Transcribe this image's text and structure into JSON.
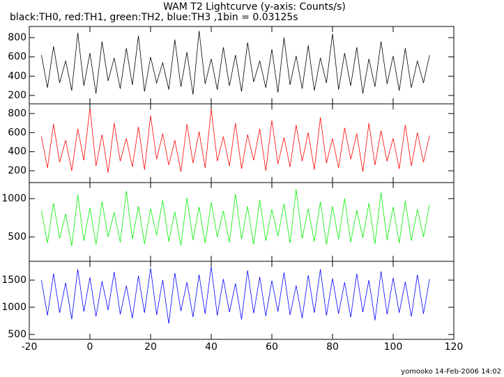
{
  "chart_data": [
    {
      "type": "line",
      "title": "WAM T2 Lightcurve (y-axis: Counts/s)",
      "subtitle": "black:TH0, red:TH1, green:TH2, blue:TH3 ,1bin = 0.03125s",
      "x": [
        -16,
        -14,
        -12,
        -10,
        -8,
        -6,
        -4,
        -2,
        0,
        2,
        4,
        6,
        8,
        10,
        12,
        14,
        16,
        18,
        20,
        22,
        24,
        26,
        28,
        30,
        32,
        34,
        36,
        38,
        40,
        42,
        44,
        46,
        48,
        50,
        52,
        54,
        56,
        58,
        60,
        62,
        64,
        66,
        68,
        70,
        72,
        74,
        76,
        78,
        80,
        82,
        84,
        86,
        88,
        90,
        92,
        94,
        96,
        98,
        100,
        102,
        104,
        106,
        108,
        110,
        112
      ],
      "values": [
        620,
        280,
        710,
        330,
        560,
        250,
        850,
        300,
        640,
        220,
        760,
        350,
        590,
        270,
        690,
        310,
        820,
        240,
        600,
        330,
        540,
        260,
        780,
        290,
        650,
        210,
        870,
        320,
        580,
        260,
        700,
        300,
        620,
        240,
        750,
        340,
        560,
        280,
        680,
        230,
        800,
        310,
        610,
        270,
        720,
        250,
        590,
        330,
        840,
        260,
        640,
        300,
        700,
        220,
        580,
        290,
        760,
        320,
        610,
        250,
        690,
        280,
        560,
        330,
        620
      ],
      "color": "#000000",
      "xlim": [
        -20,
        120
      ],
      "xticks": [
        -20,
        0,
        20,
        40,
        60,
        80,
        100,
        120
      ],
      "ylim": [
        113,
        916
      ],
      "yticks": [
        200,
        400,
        600,
        800
      ]
    },
    {
      "type": "line",
      "x": [
        -16,
        -14,
        -12,
        -10,
        -8,
        -6,
        -4,
        -2,
        0,
        2,
        4,
        6,
        8,
        10,
        12,
        14,
        16,
        18,
        20,
        22,
        24,
        26,
        28,
        30,
        32,
        34,
        36,
        38,
        40,
        42,
        44,
        46,
        48,
        50,
        52,
        54,
        56,
        58,
        60,
        62,
        64,
        66,
        68,
        70,
        72,
        74,
        76,
        78,
        80,
        82,
        84,
        86,
        88,
        90,
        92,
        94,
        96,
        98,
        100,
        102,
        104,
        106,
        108,
        110,
        112
      ],
      "values": [
        560,
        230,
        690,
        290,
        520,
        200,
        640,
        310,
        860,
        250,
        580,
        180,
        700,
        300,
        540,
        240,
        660,
        210,
        780,
        320,
        590,
        260,
        520,
        190,
        690,
        280,
        610,
        230,
        850,
        300,
        560,
        250,
        700,
        220,
        580,
        310,
        640,
        200,
        730,
        270,
        550,
        240,
        680,
        300,
        600,
        210,
        760,
        280,
        540,
        230,
        650,
        320,
        590,
        190,
        700,
        260,
        620,
        300,
        540,
        220,
        680,
        250,
        600,
        290,
        570
      ],
      "color": "#ff0000",
      "xlim": [
        -20,
        120
      ],
      "xticks": [
        -20,
        0,
        20,
        40,
        60,
        80,
        100,
        120
      ],
      "ylim": [
        76,
        902
      ],
      "yticks": [
        200,
        400,
        600,
        800
      ]
    },
    {
      "type": "line",
      "x": [
        -16,
        -14,
        -12,
        -10,
        -8,
        -6,
        -4,
        -2,
        0,
        2,
        4,
        6,
        8,
        10,
        12,
        14,
        16,
        18,
        20,
        22,
        24,
        26,
        28,
        30,
        32,
        34,
        36,
        38,
        40,
        42,
        44,
        46,
        48,
        50,
        52,
        54,
        56,
        58,
        60,
        62,
        64,
        66,
        68,
        70,
        72,
        74,
        76,
        78,
        80,
        82,
        84,
        86,
        88,
        90,
        92,
        94,
        96,
        98,
        100,
        102,
        104,
        106,
        108,
        110,
        112
      ],
      "values": [
        850,
        420,
        940,
        480,
        800,
        380,
        1050,
        450,
        880,
        400,
        960,
        500,
        820,
        430,
        1100,
        470,
        900,
        410,
        870,
        520,
        980,
        440,
        830,
        390,
        1010,
        460,
        890,
        420,
        950,
        500,
        840,
        430,
        1060,
        470,
        900,
        400,
        980,
        450,
        860,
        510,
        930,
        420,
        1120,
        480,
        870,
        440,
        960,
        400,
        900,
        470,
        1000,
        430,
        850,
        490,
        940,
        410,
        1080,
        460,
        890,
        420,
        970,
        450,
        860,
        500,
        920
      ],
      "color": "#00ee00",
      "xlim": [
        -20,
        120
      ],
      "xticks": [
        -20,
        0,
        20,
        40,
        60,
        80,
        100,
        120
      ],
      "ylim": [
        182,
        1209
      ],
      "yticks": [
        500,
        1000
      ]
    },
    {
      "type": "line",
      "x": [
        -16,
        -14,
        -12,
        -10,
        -8,
        -6,
        -4,
        -2,
        0,
        2,
        4,
        6,
        8,
        10,
        12,
        14,
        16,
        18,
        20,
        22,
        24,
        26,
        28,
        30,
        32,
        34,
        36,
        38,
        40,
        42,
        44,
        46,
        48,
        50,
        52,
        54,
        56,
        58,
        60,
        62,
        64,
        66,
        68,
        70,
        72,
        74,
        76,
        78,
        80,
        82,
        84,
        86,
        88,
        90,
        92,
        94,
        96,
        98,
        100,
        102,
        104,
        106,
        108,
        110,
        112
      ],
      "values": [
        1500,
        850,
        1620,
        900,
        1450,
        780,
        1700,
        920,
        1550,
        830,
        1480,
        950,
        1650,
        870,
        1400,
        800,
        1580,
        900,
        1720,
        860,
        1500,
        700,
        1630,
        930,
        1460,
        820,
        1600,
        880,
        1750,
        850,
        1520,
        910,
        1440,
        780,
        1680,
        890,
        1560,
        840,
        1490,
        920,
        1640,
        860,
        1400,
        800,
        1590,
        900,
        1700,
        850,
        1530,
        880,
        1460,
        820,
        1620,
        910,
        1500,
        760,
        1660,
        870,
        1540,
        900,
        1470,
        830,
        1600,
        880,
        1520
      ],
      "color": "#0000ff",
      "xlim": [
        -20,
        120
      ],
      "xticks": [
        -20,
        0,
        20,
        40,
        60,
        80,
        100,
        120
      ],
      "ylim": [
        410,
        1846
      ],
      "yticks": [
        500,
        1000,
        1500
      ]
    }
  ],
  "footer": "yomooko 14-Feb-2006 14:02"
}
